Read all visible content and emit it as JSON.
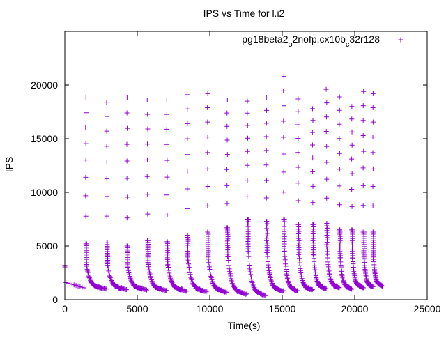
{
  "chart_data": {
    "type": "scatter",
    "title": "IPS vs Time for l.i2",
    "xlabel": "Time(s)",
    "ylabel": "IPS",
    "xlim": [
      0,
      25000
    ],
    "ylim": [
      0,
      25000
    ],
    "xticks": [
      0,
      5000,
      10000,
      15000,
      20000,
      25000
    ],
    "yticks": [
      0,
      5000,
      10000,
      15000,
      20000
    ],
    "grid": false,
    "legend_position": "top-right",
    "marker": "+",
    "color": "#9400d3",
    "series": [
      {
        "name": "pg18beta2_o2nofp.cx10b_c32r128",
        "name_parts": [
          {
            "t": "pg18beta2",
            "sub": false
          },
          {
            "t": "o",
            "sub": true
          },
          {
            "t": "2nofp.cx10b",
            "sub": false
          },
          {
            "t": "c",
            "sub": true
          },
          {
            "t": "32r128",
            "sub": false
          }
        ],
        "start_point": {
          "x": 0,
          "y": 3200
        },
        "cycles": [
          {
            "x": 1450,
            "peak": 18800,
            "after": 5200,
            "floor": 1100
          },
          {
            "x": 2900,
            "peak": 18400,
            "after": 5300,
            "floor": 1050
          },
          {
            "x": 4300,
            "peak": 18800,
            "after": 5000,
            "floor": 1000
          },
          {
            "x": 5700,
            "peak": 18600,
            "after": 5500,
            "floor": 950
          },
          {
            "x": 7050,
            "peak": 18600,
            "after": 5400,
            "floor": 900
          },
          {
            "x": 8450,
            "peak": 19100,
            "after": 6000,
            "floor": 850
          },
          {
            "x": 9850,
            "peak": 19200,
            "after": 6300,
            "floor": 800
          },
          {
            "x": 11200,
            "peak": 18600,
            "after": 6700,
            "floor": 600
          },
          {
            "x": 12600,
            "peak": 18500,
            "after": 7500,
            "floor": 500
          },
          {
            "x": 13900,
            "peak": 18800,
            "after": 7300,
            "floor": 900
          },
          {
            "x": 15100,
            "peak": 20800,
            "after": 7500,
            "floor": 900
          },
          {
            "x": 16100,
            "peak": 18700,
            "after": 7000,
            "floor": 1000
          },
          {
            "x": 17100,
            "peak": 17800,
            "after": 7000,
            "floor": 1100
          },
          {
            "x": 18050,
            "peak": 19600,
            "after": 7100,
            "floor": 1200
          },
          {
            "x": 18950,
            "peak": 18900,
            "after": 6500,
            "floor": 1100
          },
          {
            "x": 19800,
            "peak": 18000,
            "after": 6500,
            "floor": 1200
          },
          {
            "x": 20600,
            "peak": 19400,
            "after": 6300,
            "floor": 1300
          },
          {
            "x": 21250,
            "peak": 19200,
            "after": 6300,
            "floor": 1400
          }
        ],
        "end_x": 21900
      }
    ]
  }
}
